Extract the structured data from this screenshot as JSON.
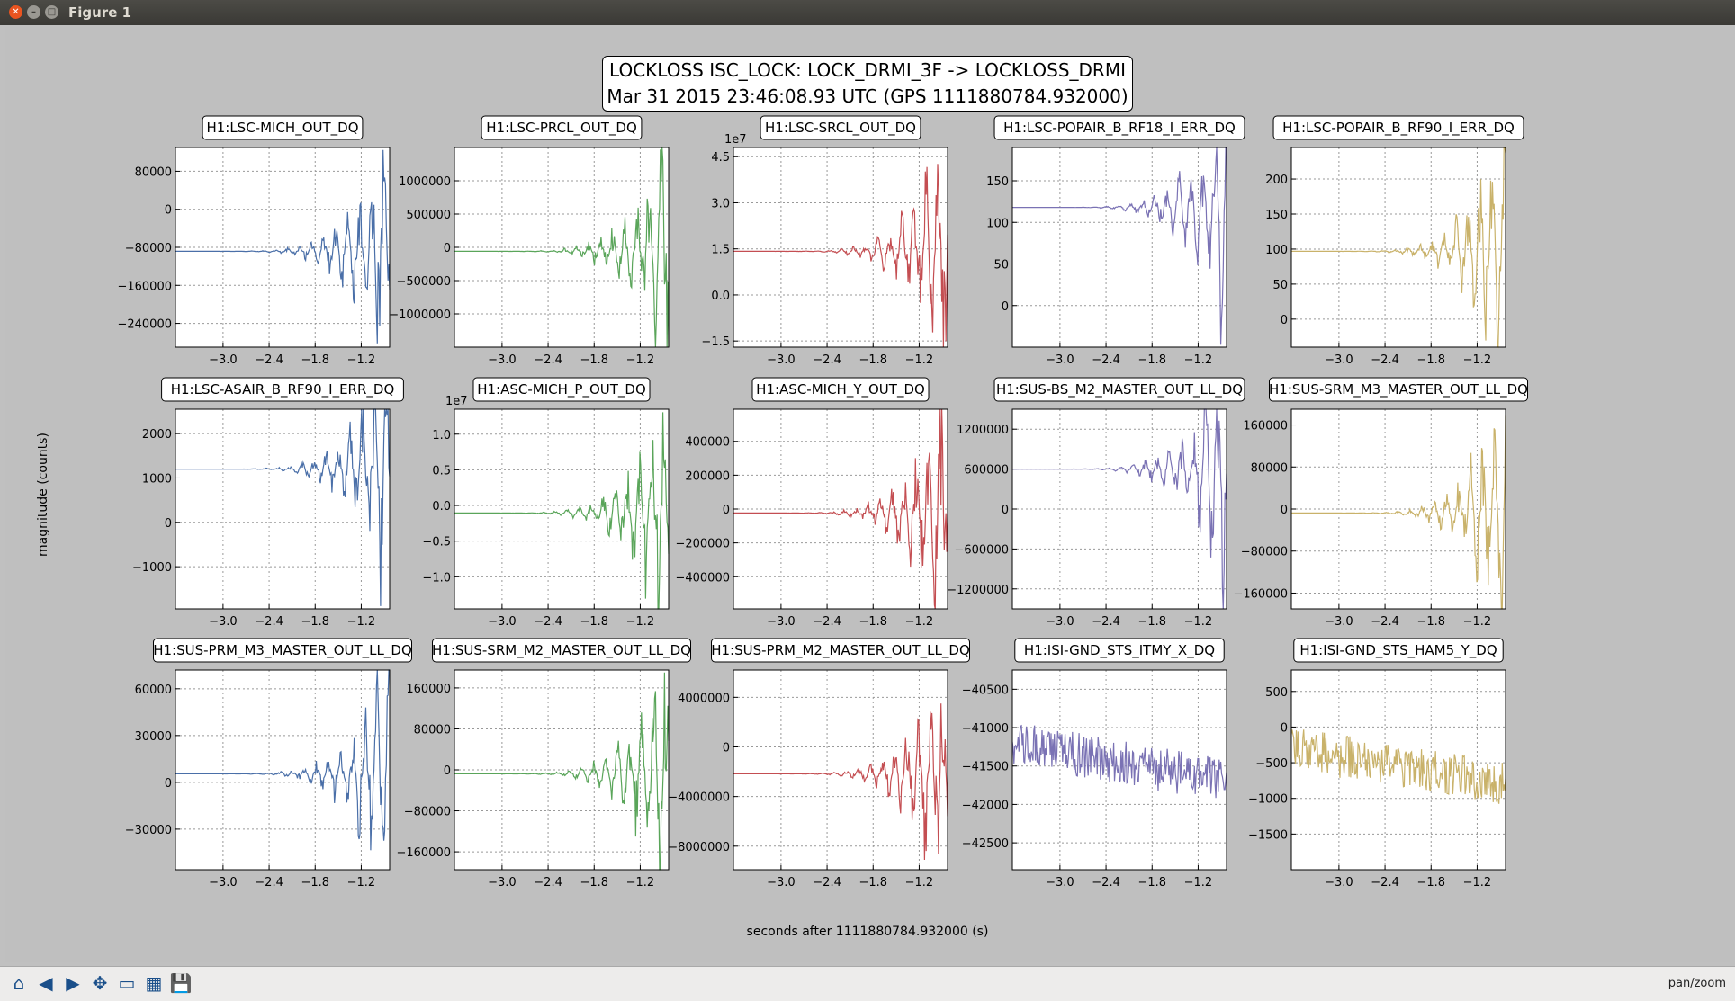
{
  "window": {
    "title": "Figure 1"
  },
  "figure": {
    "title_line1": "LOCKLOSS ISC_LOCK: LOCK_DRMI_3F -> LOCKLOSS_DRMI",
    "title_line2": "Mar 31 2015 23:46:08.93 UTC (GPS 1111880784.932000)",
    "ylabel": "magnitude (counts)",
    "xlabel": "seconds after 1111880784.932000 (s)"
  },
  "toolbar": {
    "tools": [
      "home-icon",
      "back-icon",
      "forward-icon",
      "pan-icon",
      "zoom-icon",
      "configure-icon",
      "save-icon"
    ],
    "status": "pan/zoom"
  },
  "chart_data": [
    {
      "type": "line",
      "title": "H1:LSC-MICH_OUT_DQ",
      "color": "#4a6fa8",
      "ylim": [
        -290000,
        130000
      ],
      "yticks": [
        80000,
        0,
        -80000,
        -160000,
        -240000
      ],
      "yticklabels": [
        "80000",
        "0",
        "−80000",
        "−160000",
        "−240000"
      ],
      "scale_label": ""
    },
    {
      "type": "line",
      "title": "H1:LSC-PRCL_OUT_DQ",
      "color": "#5aa55a",
      "ylim": [
        -1500000,
        1500000
      ],
      "yticks": [
        1000000,
        500000,
        0,
        -500000,
        -1000000
      ],
      "yticklabels": [
        "1000000",
        "500000",
        "0",
        "−500000",
        "−1000000"
      ],
      "scale_label": ""
    },
    {
      "type": "line",
      "title": "H1:LSC-SRCL_OUT_DQ",
      "color": "#c44e52",
      "ylim": [
        -1.7,
        4.8
      ],
      "yticks": [
        4.5,
        3.0,
        1.5,
        0.0,
        -1.5
      ],
      "yticklabels": [
        "4.5",
        "3.0",
        "1.5",
        "0.0",
        "−1.5"
      ],
      "scale_label": "1e7"
    },
    {
      "type": "line",
      "title": "H1:LSC-POPAIR_B_RF18_I_ERR_DQ",
      "color": "#7a72b4",
      "ylim": [
        -50,
        190
      ],
      "yticks": [
        150,
        100,
        50,
        0
      ],
      "yticklabels": [
        "150",
        "100",
        "50",
        "0"
      ],
      "scale_label": ""
    },
    {
      "type": "line",
      "title": "H1:LSC-POPAIR_B_RF90_I_ERR_DQ",
      "color": "#c9b26a",
      "ylim": [
        -40,
        245
      ],
      "yticks": [
        200,
        150,
        100,
        50,
        0
      ],
      "yticklabels": [
        "200",
        "150",
        "100",
        "50",
        "0"
      ],
      "scale_label": ""
    },
    {
      "type": "line",
      "title": "H1:LSC-ASAIR_B_RF90_I_ERR_DQ",
      "color": "#4a6fa8",
      "ylim": [
        -1950,
        2550
      ],
      "yticks": [
        2000,
        1000,
        0,
        -1000
      ],
      "yticklabels": [
        "2000",
        "1000",
        "0",
        "−1000"
      ],
      "scale_label": ""
    },
    {
      "type": "line",
      "title": "H1:ASC-MICH_P_OUT_DQ",
      "color": "#5aa55a",
      "ylim": [
        -1.45,
        1.35
      ],
      "yticks": [
        1.0,
        0.5,
        0.0,
        -0.5,
        -1.0
      ],
      "yticklabels": [
        "1.0",
        "0.5",
        "0.0",
        "−0.5",
        "−1.0"
      ],
      "scale_label": "1e7"
    },
    {
      "type": "line",
      "title": "H1:ASC-MICH_Y_OUT_DQ",
      "color": "#c44e52",
      "ylim": [
        -590000,
        590000
      ],
      "yticks": [
        400000,
        200000,
        0,
        -200000,
        -400000
      ],
      "yticklabels": [
        "400000",
        "200000",
        "0",
        "−200000",
        "−400000"
      ],
      "scale_label": ""
    },
    {
      "type": "line",
      "title": "H1:SUS-BS_M2_MASTER_OUT_LL_DQ",
      "color": "#7a72b4",
      "ylim": [
        -1500000,
        1500000
      ],
      "yticks": [
        1200000,
        600000,
        0,
        -600000,
        -1200000
      ],
      "yticklabels": [
        "1200000",
        "600000",
        "0",
        "−600000",
        "−1200000"
      ],
      "scale_label": ""
    },
    {
      "type": "line",
      "title": "H1:SUS-SRM_M3_MASTER_OUT_LL_DQ",
      "color": "#c9b26a",
      "ylim": [
        -190000,
        190000
      ],
      "yticks": [
        160000,
        80000,
        0,
        -80000,
        -160000
      ],
      "yticklabels": [
        "160000",
        "80000",
        "0",
        "−80000",
        "−160000"
      ],
      "scale_label": ""
    },
    {
      "type": "line",
      "title": "H1:SUS-PRM_M3_MASTER_OUT_LL_DQ",
      "color": "#4a6fa8",
      "ylim": [
        -56000,
        72000
      ],
      "yticks": [
        60000,
        30000,
        0,
        -30000
      ],
      "yticklabels": [
        "60000",
        "30000",
        "0",
        "−30000"
      ],
      "scale_label": ""
    },
    {
      "type": "line",
      "title": "H1:SUS-SRM_M2_MASTER_OUT_LL_DQ",
      "color": "#5aa55a",
      "ylim": [
        -195000,
        195000
      ],
      "yticks": [
        160000,
        80000,
        0,
        -80000,
        -160000
      ],
      "yticklabels": [
        "160000",
        "80000",
        "0",
        "−80000",
        "−160000"
      ],
      "scale_label": ""
    },
    {
      "type": "line",
      "title": "H1:SUS-PRM_M2_MASTER_OUT_LL_DQ",
      "color": "#c44e52",
      "ylim": [
        -9900000,
        6200000
      ],
      "yticks": [
        4000000,
        0,
        -4000000,
        -8000000
      ],
      "yticklabels": [
        "4000000",
        "0",
        "−4000000",
        "−8000000"
      ],
      "scale_label": ""
    },
    {
      "type": "line",
      "title": "H1:ISI-GND_STS_ITMY_X_DQ",
      "color": "#7a72b4",
      "ylim": [
        -42850,
        -40250
      ],
      "yticks": [
        -40500,
        -41000,
        -41500,
        -42000,
        -42500
      ],
      "yticklabels": [
        "−40500",
        "−41000",
        "−41500",
        "−42000",
        "−42500"
      ],
      "scale_label": ""
    },
    {
      "type": "line",
      "title": "H1:ISI-GND_STS_HAM5_Y_DQ",
      "color": "#c9b26a",
      "ylim": [
        -2000,
        800
      ],
      "yticks": [
        500,
        0,
        -500,
        -1000,
        -1500
      ],
      "yticklabels": [
        "500",
        "0",
        "−500",
        "−1000",
        "−1500"
      ],
      "scale_label": ""
    }
  ],
  "shared_x": {
    "xlim": [
      -3.62,
      -0.83
    ],
    "xticks": [
      -3.0,
      -2.4,
      -1.8,
      -1.2
    ],
    "xticklabels": [
      "−3.0",
      "−2.4",
      "−1.8",
      "−1.2"
    ],
    "grid": true
  }
}
